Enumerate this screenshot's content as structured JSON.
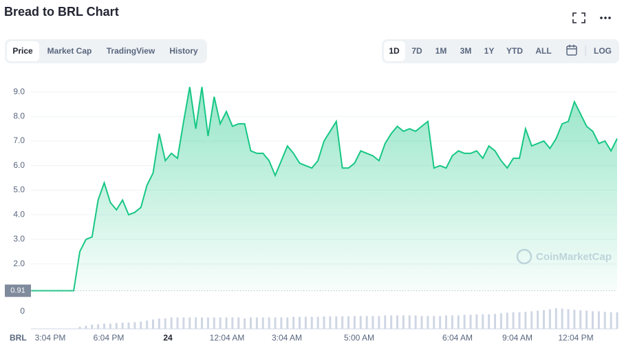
{
  "header": {
    "title": "Bread to BRL Chart",
    "tabs": [
      "Price",
      "Market Cap",
      "TradingView",
      "History"
    ],
    "ranges": [
      "1D",
      "7D",
      "1M",
      "3M",
      "1Y",
      "YTD",
      "ALL"
    ],
    "log": "LOG"
  },
  "watermark": "CoinMarketCap",
  "chart_data": {
    "type": "line",
    "color": "#16c784",
    "currency": "BRL",
    "values": [
      0.91,
      0.91,
      0.91,
      0.91,
      0.91,
      0.91,
      0.91,
      0.91,
      2.5,
      3.0,
      3.1,
      4.6,
      5.3,
      4.5,
      4.2,
      4.6,
      4.0,
      4.1,
      4.3,
      5.2,
      5.7,
      7.3,
      6.2,
      6.5,
      6.3,
      7.8,
      9.2,
      7.5,
      9.2,
      7.2,
      8.8,
      7.7,
      8.2,
      7.6,
      7.7,
      7.7,
      6.6,
      6.5,
      6.5,
      6.2,
      5.6,
      6.2,
      6.8,
      6.5,
      6.1,
      6.0,
      5.9,
      6.2,
      7.0,
      7.4,
      7.8,
      5.9,
      5.9,
      6.1,
      6.6,
      6.5,
      6.4,
      6.2,
      6.9,
      7.3,
      7.6,
      7.4,
      7.5,
      7.4,
      7.6,
      7.8,
      5.9,
      6.0,
      5.9,
      6.4,
      6.6,
      6.5,
      6.5,
      6.6,
      6.3,
      6.8,
      6.6,
      6.2,
      5.9,
      6.3,
      6.3,
      7.5,
      6.8,
      6.9,
      7.0,
      6.7,
      7.1,
      7.7,
      7.8,
      8.6,
      8.1,
      7.6,
      7.4,
      6.9,
      7.0,
      6.6,
      7.1
    ],
    "volume": [
      0,
      0,
      0,
      0,
      0,
      0,
      0,
      0,
      10,
      15,
      20,
      22,
      25,
      25,
      28,
      30,
      30,
      32,
      35,
      40,
      45,
      50,
      50,
      55,
      55,
      55,
      55,
      55,
      55,
      55,
      55,
      55,
      55,
      55,
      55,
      50,
      55,
      55,
      55,
      55,
      55,
      55,
      55,
      58,
      58,
      58,
      58,
      58,
      60,
      60,
      60,
      60,
      60,
      62,
      62,
      62,
      62,
      62,
      65,
      65,
      65,
      65,
      65,
      65,
      62,
      62,
      62,
      62,
      65,
      65,
      65,
      68,
      68,
      70,
      70,
      70,
      72,
      75,
      78,
      80,
      80,
      82,
      85,
      88,
      90,
      95,
      100,
      98,
      95,
      92,
      90,
      88,
      85,
      85,
      82,
      80,
      80
    ],
    "volume_ticks": [
      0
    ],
    "ylim": [
      0.9,
      9.8
    ],
    "yticks": [
      {
        "value": 2,
        "label": "2.0"
      },
      {
        "value": 3,
        "label": "3.0"
      },
      {
        "value": 4,
        "label": "4.0"
      },
      {
        "value": 5,
        "label": "5.0"
      },
      {
        "value": 6,
        "label": "6.0"
      },
      {
        "value": 7,
        "label": "7.0"
      },
      {
        "value": 8,
        "label": "8.0"
      },
      {
        "value": 9,
        "label": "9.0"
      }
    ],
    "current_price": 0.91,
    "xticks": [
      "3:04 PM",
      "6:04 PM",
      "24",
      "12:04 AM",
      "3:04 AM",
      "5:00 AM",
      "6:04 AM",
      "9:04 AM",
      "12:04 PM"
    ],
    "grid": true
  }
}
